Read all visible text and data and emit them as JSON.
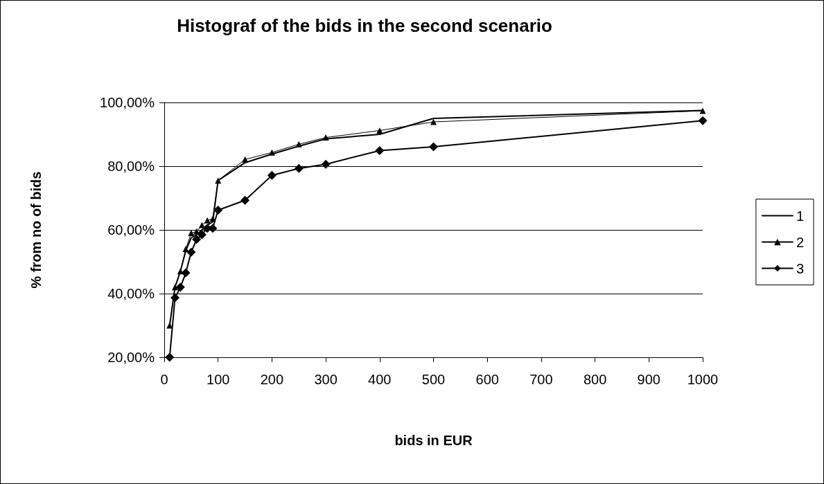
{
  "chart_data": {
    "type": "line",
    "title": "Histograf of the bids in the second scenario",
    "xlabel": "bids in EUR",
    "ylabel": "% from no of bids",
    "x": [
      10,
      20,
      30,
      40,
      50,
      60,
      70,
      80,
      90,
      100,
      150,
      200,
      250,
      300,
      400,
      500,
      1000
    ],
    "series": [
      {
        "name": "1",
        "color": "#000000",
        "marker": "none",
        "values": [
          30,
          42,
          47,
          53.5,
          57.5,
          58.5,
          60,
          61.5,
          62.5,
          75.5,
          81.1,
          83.8,
          86.3,
          88.6,
          90,
          95,
          97.5
        ]
      },
      {
        "name": "2",
        "color": "#000000",
        "marker": "triangle",
        "values": [
          30,
          42,
          47,
          54,
          59,
          59.5,
          61.5,
          63,
          63.5,
          75.5,
          82.1,
          84.3,
          86.9,
          89,
          91.2,
          93.9,
          97.4
        ]
      },
      {
        "name": "3",
        "color": "#000000",
        "marker": "diamond",
        "values": [
          20,
          38.7,
          42,
          46.5,
          53,
          57,
          58.5,
          60.5,
          60.5,
          66.2,
          69.3,
          77.1,
          79.3,
          80.6,
          84.9,
          86.1,
          94.3
        ]
      }
    ],
    "xlim": [
      0,
      1000
    ],
    "xticks": [
      0,
      100,
      200,
      300,
      400,
      500,
      600,
      700,
      800,
      900,
      1000
    ],
    "ylim": [
      20,
      100
    ],
    "yticks": [
      {
        "value": 20,
        "label": "20,00%"
      },
      {
        "value": 40,
        "label": "40,00%"
      },
      {
        "value": 60,
        "label": "60,00%"
      },
      {
        "value": 80,
        "label": "80,00%"
      },
      {
        "value": 100,
        "label": "100,00%"
      }
    ],
    "grid": "y",
    "legend": "right",
    "line_style": "solid"
  }
}
